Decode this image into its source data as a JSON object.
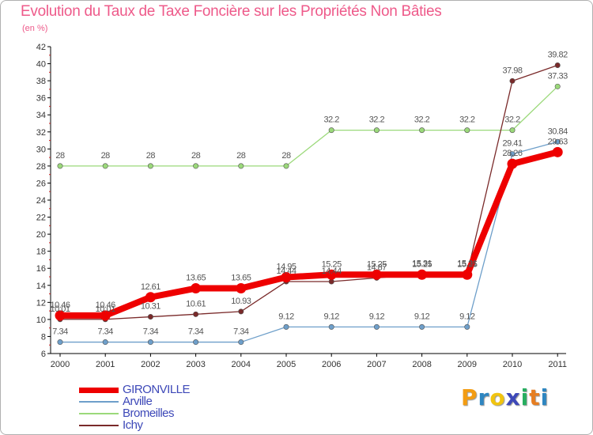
{
  "chart_data": {
    "type": "line",
    "title": "Evolution du Taux de Taxe Foncière sur les Propriétés Non Bâties",
    "ylabel": "(en %)",
    "xlabel": "",
    "categories": [
      "2000",
      "2001",
      "2002",
      "2003",
      "2004",
      "2005",
      "2006",
      "2007",
      "2008",
      "2009",
      "2010",
      "2011"
    ],
    "ylim": [
      6,
      42
    ],
    "yticks": [
      6,
      8,
      10,
      12,
      14,
      16,
      18,
      20,
      22,
      24,
      26,
      28,
      30,
      32,
      34,
      36,
      38,
      40,
      42
    ],
    "grid": false,
    "legend": "bottom-left",
    "series": [
      {
        "name": "GIRONVILLE",
        "color": "#ee0000",
        "values": [
          10.46,
          10.46,
          12.61,
          13.65,
          13.65,
          14.95,
          15.25,
          15.25,
          15.25,
          15.25,
          28.26,
          29.63
        ],
        "labels": [
          "10.46",
          "10.46",
          "12.61",
          "13.65",
          "13.65",
          "14.95",
          "15.25",
          "15.25",
          "15.25",
          "15.25",
          "28.26",
          "29.63"
        ]
      },
      {
        "name": "Arville",
        "color": "#6e9fca",
        "values": [
          7.34,
          7.34,
          7.34,
          7.34,
          7.34,
          9.12,
          9.12,
          9.12,
          9.12,
          9.12,
          29.41,
          30.84
        ],
        "labels": [
          "7.34",
          "7.34",
          "7.34",
          "7.34",
          "7.34",
          "9.12",
          "9.12",
          "9.12",
          "9.12",
          "9.12",
          "29.41",
          "30.84"
        ]
      },
      {
        "name": "Bromeilles",
        "color": "#9bd97a",
        "values": [
          28,
          28,
          28,
          28,
          28,
          28,
          32.2,
          32.2,
          32.2,
          32.2,
          32.2,
          37.33
        ],
        "labels": [
          "28",
          "28",
          "28",
          "28",
          "28",
          "28",
          "32.2",
          "32.2",
          "32.2",
          "32.2",
          "32.2",
          "37.33"
        ]
      },
      {
        "name": "Ichy",
        "color": "#7a2a2a",
        "values": [
          10.01,
          10.01,
          10.31,
          10.61,
          10.93,
          14.44,
          14.44,
          14.87,
          15.31,
          15.31,
          37.98,
          39.82
        ],
        "labels": [
          "10.01",
          "10.01",
          "10.31",
          "10.61",
          "10.93",
          "14.44",
          "14.44",
          "14.87",
          "15.31",
          "15.31",
          "37.98",
          "39.82"
        ]
      }
    ]
  },
  "logo": {
    "text": "Proxiti",
    "letters": [
      "P",
      "r",
      "o",
      "x",
      "i",
      "t",
      "i"
    ],
    "colors": [
      "#f39c12",
      "#2e86c1",
      "#f1c40f",
      "#3d48b8",
      "#27ae60",
      "#e67e22",
      "#2e86c1"
    ]
  }
}
